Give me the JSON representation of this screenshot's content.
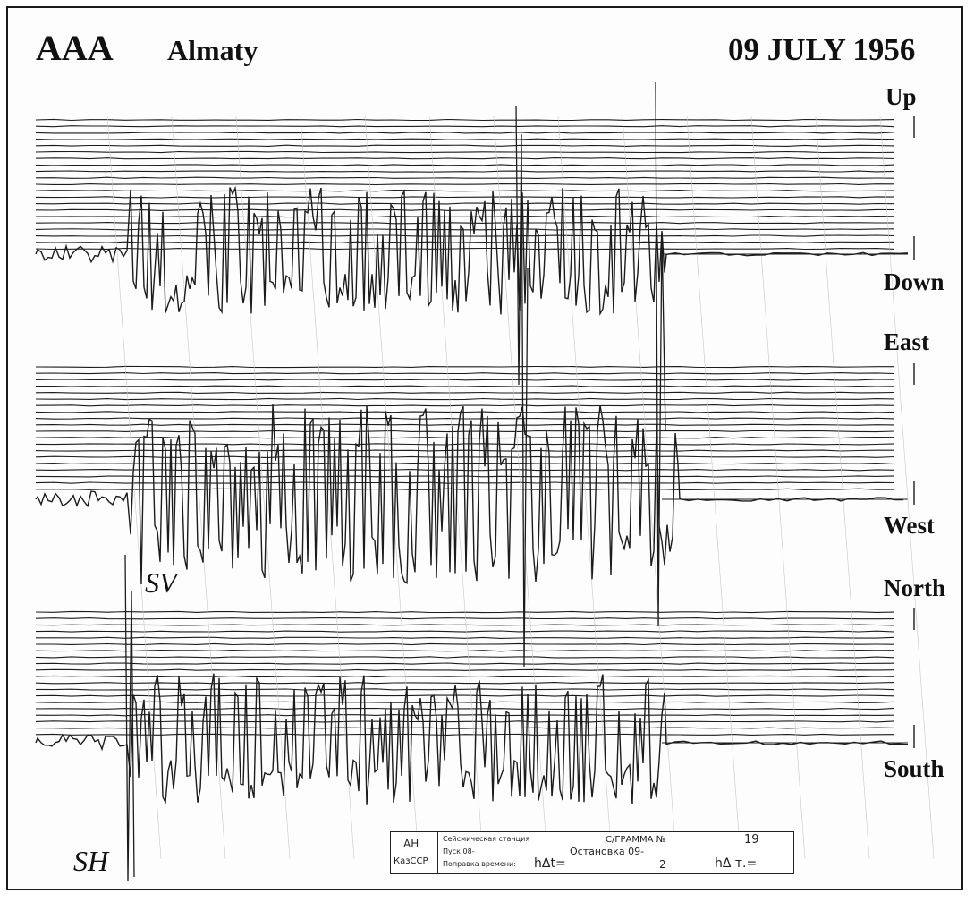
{
  "header": {
    "station_code": "AAA",
    "station_name": "Almaty",
    "date": "09 JULY 1956"
  },
  "components": [
    {
      "top_label": "Up",
      "bottom_label": "Down"
    },
    {
      "top_label": "East",
      "bottom_label": "West"
    },
    {
      "top_label": "North",
      "bottom_label": "South"
    }
  ],
  "phase_labels": {
    "sv": "SV",
    "sh": "SH"
  },
  "stamp": {
    "org_top": "АН",
    "org_bottom": "КазССР",
    "line1": "Сейсмическая станция",
    "line1_right": "С/ГРАММА №",
    "line1_year": "19",
    "line2_left": "Пуск 08-",
    "line2_right": "Остановка 09-",
    "line3_left": "Поправка времени:",
    "line3_mid": "hΔt=",
    "line3_val": "2",
    "line3_right": "hΔ т.="
  },
  "colors": {
    "ink": "#111111",
    "trace": "#1c1c1c",
    "paper": "#fdfdfd"
  }
}
